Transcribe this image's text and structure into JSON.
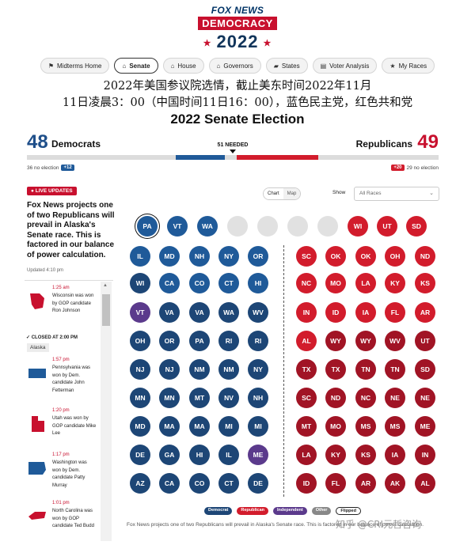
{
  "logo": {
    "brand": "FOX NEWS",
    "section": "DEMOCRACY",
    "year": "2022"
  },
  "nav": [
    {
      "label": "Midterms Home",
      "icon": "flag-icon",
      "glyph": "⚑"
    },
    {
      "label": "Senate",
      "icon": "capitol-icon",
      "glyph": "⌂",
      "active": true
    },
    {
      "label": "House",
      "icon": "house-icon",
      "glyph": "⌂"
    },
    {
      "label": "Governors",
      "icon": "building-icon",
      "glyph": "⌂"
    },
    {
      "label": "States",
      "icon": "map-icon",
      "glyph": "▰"
    },
    {
      "label": "Voter Analysis",
      "icon": "chart-icon",
      "glyph": "▤"
    },
    {
      "label": "My Races",
      "icon": "star-icon",
      "glyph": "★"
    }
  ],
  "caption": {
    "line1": "2022年美国参议院选情，截止美东时间2022年11月",
    "line2": "11日凌晨3：00（中国时间11日16：00），蓝色民主党，红色共和党"
  },
  "title": "2022 Senate Election",
  "tally": {
    "dem_count": "48",
    "dem_label": "Democrats",
    "rep_count": "49",
    "rep_label": "Republicans",
    "needed": "51 NEEDED",
    "dem_no_election": "36 no election",
    "dem_won": "+12",
    "rep_won": "+20",
    "rep_no_election": "29 no election",
    "colors": {
      "dem_dark": "#1d4676",
      "dem": "#1f5a99",
      "rep": "#d21c2c",
      "rep_dark": "#a11425"
    }
  },
  "live": {
    "badge": "LIVE UPDATES",
    "headline": "Fox News projects one of two Republicans will prevail in Alaska's Senate race. This is factored in our balance of power calculation.",
    "updated": "Updated 4:10 pm",
    "closed": "CLOSED AT 2:00 PM",
    "closed_state": "Alaska",
    "feed": [
      {
        "time": "1:25 am",
        "text": "Wisconsin was won by GOP candidate Ron Johnson",
        "color": "#c8102e",
        "map": "wisconsin-map-icon"
      },
      {
        "time": "1:57 pm",
        "text": "Pennsylvania was won by Dem. candidate John Fetterman",
        "color": "#1f5a99",
        "map": "pennsylvania-map-icon"
      },
      {
        "time": "1:20 pm",
        "text": "Utah was won by GOP candidate Mike Lee",
        "color": "#c8102e",
        "map": "utah-map-icon"
      },
      {
        "time": "1:17 pm",
        "text": "Washington was won by Dem. candidate Patty Murray",
        "color": "#1f5a99",
        "map": "washington-map-icon"
      },
      {
        "time": "1:01 pm",
        "text": "North Carolina was won by GOP candidate Ted Budd",
        "color": "#c8102e",
        "map": "north-carolina-map-icon"
      }
    ]
  },
  "controls": {
    "chart": "Chart",
    "map": "Map",
    "show": "Show",
    "filter": "All Races"
  },
  "grid": {
    "top": [
      {
        "s": "PA",
        "c": "dl",
        "flip": true
      },
      {
        "s": "VT",
        "c": "dl"
      },
      {
        "s": "WA",
        "c": "dl"
      },
      {
        "s": "",
        "c": "e"
      },
      {
        "s": "",
        "c": "e"
      },
      {
        "s": "",
        "c": "e"
      },
      {
        "s": "",
        "c": "e"
      },
      {
        "s": "WI",
        "c": "rl"
      },
      {
        "s": "UT",
        "c": "rl"
      },
      {
        "s": "SD",
        "c": "rl"
      }
    ],
    "left": [
      [
        {
          "s": "IL",
          "c": "dl"
        },
        {
          "s": "MD",
          "c": "dl"
        },
        {
          "s": "NH",
          "c": "dl"
        },
        {
          "s": "NY",
          "c": "dl"
        },
        {
          "s": "OR",
          "c": "dl"
        }
      ],
      [
        {
          "s": "WI",
          "c": "d"
        },
        {
          "s": "CA",
          "c": "dl"
        },
        {
          "s": "CO",
          "c": "dl"
        },
        {
          "s": "CT",
          "c": "dl"
        },
        {
          "s": "HI",
          "c": "dl"
        }
      ],
      [
        {
          "s": "VT",
          "c": "i"
        },
        {
          "s": "VA",
          "c": "d"
        },
        {
          "s": "VA",
          "c": "d"
        },
        {
          "s": "WA",
          "c": "d"
        },
        {
          "s": "WV",
          "c": "d"
        }
      ],
      [
        {
          "s": "OH",
          "c": "d"
        },
        {
          "s": "OR",
          "c": "d"
        },
        {
          "s": "PA",
          "c": "d"
        },
        {
          "s": "RI",
          "c": "d"
        },
        {
          "s": "RI",
          "c": "d"
        }
      ],
      [
        {
          "s": "NJ",
          "c": "d"
        },
        {
          "s": "NJ",
          "c": "d"
        },
        {
          "s": "NM",
          "c": "d"
        },
        {
          "s": "NM",
          "c": "d"
        },
        {
          "s": "NY",
          "c": "d"
        }
      ],
      [
        {
          "s": "MN",
          "c": "d"
        },
        {
          "s": "MN",
          "c": "d"
        },
        {
          "s": "MT",
          "c": "d"
        },
        {
          "s": "NV",
          "c": "d"
        },
        {
          "s": "NH",
          "c": "d"
        }
      ],
      [
        {
          "s": "MD",
          "c": "d"
        },
        {
          "s": "MA",
          "c": "d"
        },
        {
          "s": "MA",
          "c": "d"
        },
        {
          "s": "MI",
          "c": "d"
        },
        {
          "s": "MI",
          "c": "d"
        }
      ],
      [
        {
          "s": "DE",
          "c": "d"
        },
        {
          "s": "GA",
          "c": "d"
        },
        {
          "s": "HI",
          "c": "d"
        },
        {
          "s": "IL",
          "c": "d"
        },
        {
          "s": "ME",
          "c": "i"
        }
      ],
      [
        {
          "s": "AZ",
          "c": "d"
        },
        {
          "s": "CA",
          "c": "d"
        },
        {
          "s": "CO",
          "c": "d"
        },
        {
          "s": "CT",
          "c": "d"
        },
        {
          "s": "DE",
          "c": "d"
        }
      ]
    ],
    "right": [
      [
        {
          "s": "SC",
          "c": "rl"
        },
        {
          "s": "OK",
          "c": "rl"
        },
        {
          "s": "OK",
          "c": "rl"
        },
        {
          "s": "OH",
          "c": "rl"
        },
        {
          "s": "ND",
          "c": "rl"
        }
      ],
      [
        {
          "s": "NC",
          "c": "rl"
        },
        {
          "s": "MO",
          "c": "rl"
        },
        {
          "s": "LA",
          "c": "rl"
        },
        {
          "s": "KY",
          "c": "rl"
        },
        {
          "s": "KS",
          "c": "rl"
        }
      ],
      [
        {
          "s": "IN",
          "c": "rl"
        },
        {
          "s": "ID",
          "c": "rl"
        },
        {
          "s": "IA",
          "c": "rl"
        },
        {
          "s": "FL",
          "c": "rl"
        },
        {
          "s": "AR",
          "c": "rl"
        }
      ],
      [
        {
          "s": "AL",
          "c": "rl"
        },
        {
          "s": "WY",
          "c": "r"
        },
        {
          "s": "WY",
          "c": "r"
        },
        {
          "s": "WV",
          "c": "r"
        },
        {
          "s": "UT",
          "c": "r"
        }
      ],
      [
        {
          "s": "TX",
          "c": "r"
        },
        {
          "s": "TX",
          "c": "r"
        },
        {
          "s": "TN",
          "c": "r"
        },
        {
          "s": "TN",
          "c": "r"
        },
        {
          "s": "SD",
          "c": "r"
        }
      ],
      [
        {
          "s": "SC",
          "c": "r"
        },
        {
          "s": "ND",
          "c": "r"
        },
        {
          "s": "NC",
          "c": "r"
        },
        {
          "s": "NE",
          "c": "r"
        },
        {
          "s": "NE",
          "c": "r"
        }
      ],
      [
        {
          "s": "MT",
          "c": "r"
        },
        {
          "s": "MO",
          "c": "r"
        },
        {
          "s": "MS",
          "c": "r"
        },
        {
          "s": "MS",
          "c": "r"
        },
        {
          "s": "ME",
          "c": "r"
        }
      ],
      [
        {
          "s": "LA",
          "c": "r"
        },
        {
          "s": "KY",
          "c": "r"
        },
        {
          "s": "KS",
          "c": "r"
        },
        {
          "s": "IA",
          "c": "r"
        },
        {
          "s": "IN",
          "c": "r"
        }
      ],
      [
        {
          "s": "ID",
          "c": "r"
        },
        {
          "s": "FL",
          "c": "r"
        },
        {
          "s": "AR",
          "c": "r"
        },
        {
          "s": "AK",
          "c": "r"
        },
        {
          "s": "AL",
          "c": "r"
        }
      ]
    ]
  },
  "legend": {
    "democrat": "Democrat",
    "republican": "Republican",
    "independent": "Independent",
    "other": "Other",
    "flipped": "Flipped"
  },
  "footnote": "Fox News projects one of two Republicans will prevail in Alaska's Senate race. This is factored in our balance of power calculation.",
  "watermark": "知乎 @CRI元哲咨询"
}
